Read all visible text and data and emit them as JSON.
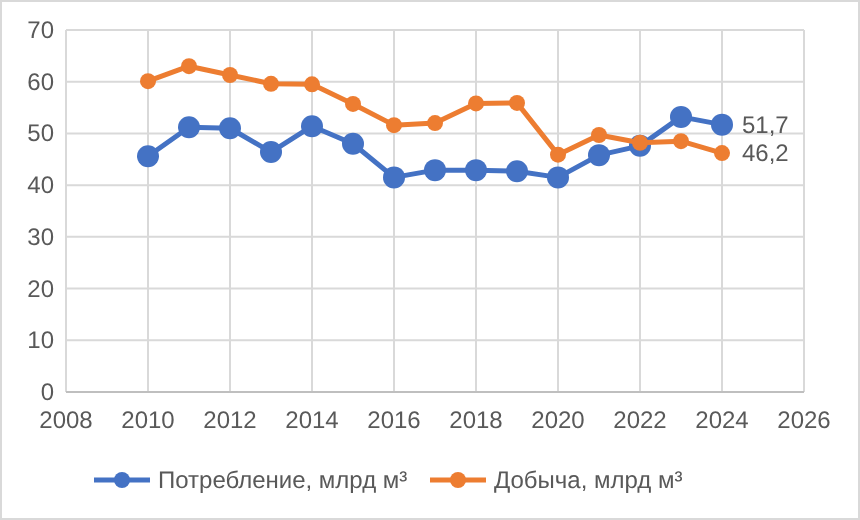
{
  "chart_data": {
    "type": "line",
    "x": [
      2010,
      2011,
      2012,
      2013,
      2014,
      2015,
      2016,
      2017,
      2018,
      2019,
      2020,
      2021,
      2022,
      2023,
      2024
    ],
    "series": [
      {
        "name": "Потребление, млрд м³",
        "color": "#4472c4",
        "values": [
          45.6,
          51.2,
          51,
          46.4,
          51.4,
          48,
          41.5,
          42.9,
          42.9,
          42.7,
          41.5,
          45.8,
          47.6,
          53.2,
          51.7
        ],
        "value_labels": [
          null,
          null,
          null,
          null,
          null,
          null,
          null,
          null,
          null,
          null,
          null,
          null,
          null,
          null,
          "51,7"
        ]
      },
      {
        "name": "Добыча, млрд м³",
        "color": "#ed7d31",
        "values": [
          60.1,
          63,
          61.3,
          59.6,
          59.5,
          55.7,
          51.6,
          52,
          55.8,
          55.9,
          45.9,
          49.7,
          48.2,
          48.5,
          46.2
        ],
        "value_labels": [
          null,
          null,
          null,
          null,
          null,
          null,
          null,
          null,
          null,
          null,
          null,
          null,
          null,
          null,
          "46,2"
        ]
      }
    ],
    "xlim": [
      2008,
      2026
    ],
    "xticks": [
      2008,
      2010,
      2012,
      2014,
      2016,
      2018,
      2020,
      2022,
      2024,
      2026
    ],
    "ylim": [
      0,
      70
    ],
    "yticks": [
      0,
      10,
      20,
      30,
      40,
      50,
      60,
      70
    ],
    "grid": true,
    "legend": "bottom",
    "marker": "circle",
    "line_style": "solid"
  }
}
